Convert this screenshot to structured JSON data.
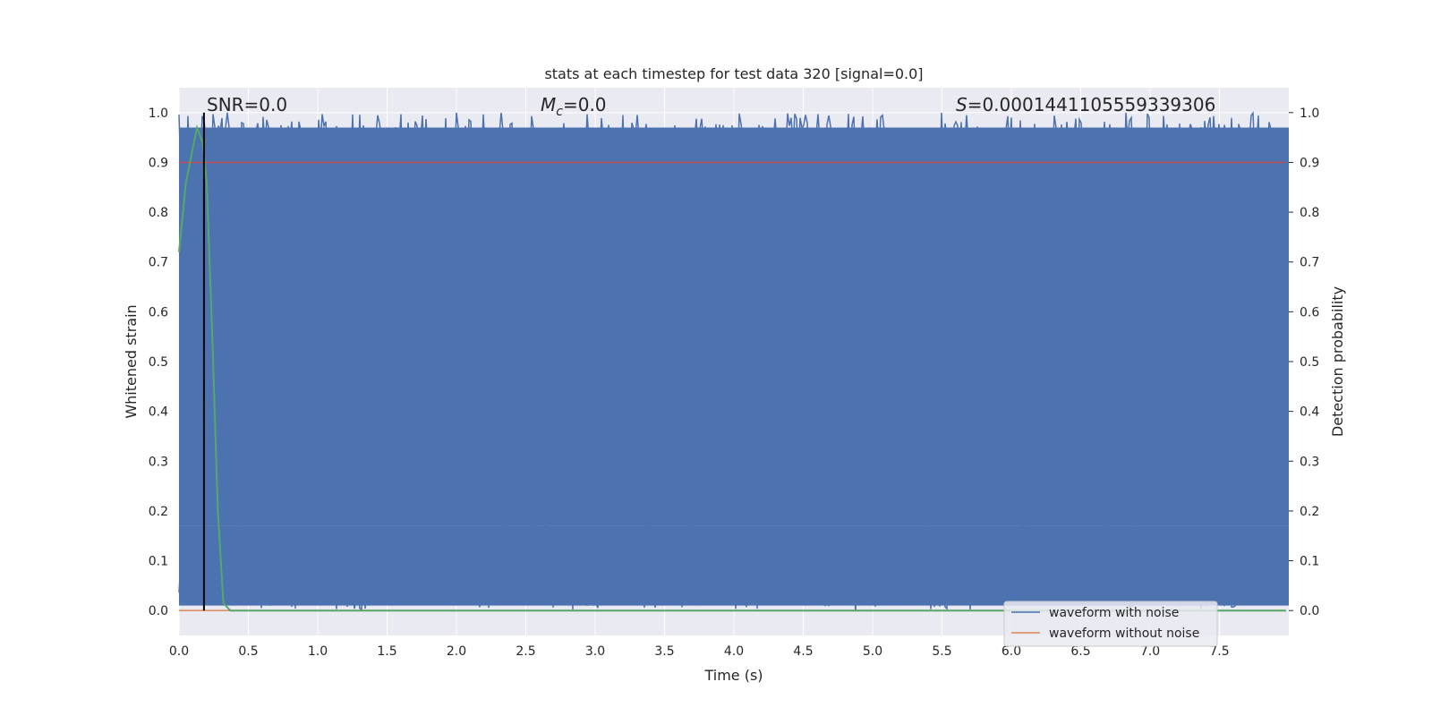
{
  "chart_data": {
    "type": "line",
    "title": "stats at each timestep for test data 320 [signal=0.0]",
    "xlabel": "Time (s)",
    "ylabel_left": "Whitened strain",
    "ylabel_right": "Detection probability",
    "xlim": [
      0.0,
      8.0
    ],
    "ylim": [
      -0.05,
      1.05
    ],
    "x_ticks": [
      "0.0",
      "0.5",
      "1.0",
      "1.5",
      "2.0",
      "2.5",
      "3.0",
      "3.5",
      "4.0",
      "4.5",
      "5.0",
      "5.5",
      "6.0",
      "6.5",
      "7.0",
      "7.5"
    ],
    "x_tick_values": [
      0.0,
      0.5,
      1.0,
      1.5,
      2.0,
      2.5,
      3.0,
      3.5,
      4.0,
      4.5,
      5.0,
      5.5,
      6.0,
      6.5,
      7.0,
      7.5
    ],
    "y_ticks": [
      "0.0",
      "0.1",
      "0.2",
      "0.3",
      "0.4",
      "0.5",
      "0.6",
      "0.7",
      "0.8",
      "0.9",
      "1.0"
    ],
    "y_tick_values": [
      0.0,
      0.1,
      0.2,
      0.3,
      0.4,
      0.5,
      0.6,
      0.7,
      0.8,
      0.9,
      1.0
    ],
    "grid": true,
    "legend_position": "lower-right",
    "annotations": {
      "snr": "SNR=0.0",
      "mc_symbol": "M",
      "mc_sub": "c",
      "mc_value": "=0.0",
      "s_symbol": "S",
      "s_value": "=0.0001441105559339306"
    },
    "threshold": {
      "value": 0.9,
      "color": "#c44e52"
    },
    "marker_line": {
      "x": 0.18,
      "color": "#000000"
    },
    "series": [
      {
        "name": "waveform with noise",
        "color": "#4c72b0",
        "description_range": [
          0.0,
          1.0
        ]
      },
      {
        "name": "waveform without noise",
        "color": "#dd8452",
        "x": [
          0.0,
          7.98
        ],
        "y": [
          0.0,
          0.0
        ]
      },
      {
        "color": "#55a868",
        "x": [
          0.0,
          0.05,
          0.1,
          0.13,
          0.17,
          0.2,
          0.24,
          0.28,
          0.32,
          0.37,
          0.45,
          1.0,
          2.0,
          3.0,
          4.0,
          5.0,
          6.0,
          7.0,
          7.98
        ],
        "y": [
          0.72,
          0.86,
          0.93,
          0.97,
          0.94,
          0.86,
          0.55,
          0.2,
          0.015,
          0.0,
          0.0,
          0.0,
          0.0,
          0.0,
          0.0,
          0.0,
          0.0,
          0.0,
          0.0
        ]
      }
    ],
    "colors": {
      "axes_bg": "#eaeaf2",
      "grid": "#ffffff",
      "text": "#262626"
    }
  }
}
